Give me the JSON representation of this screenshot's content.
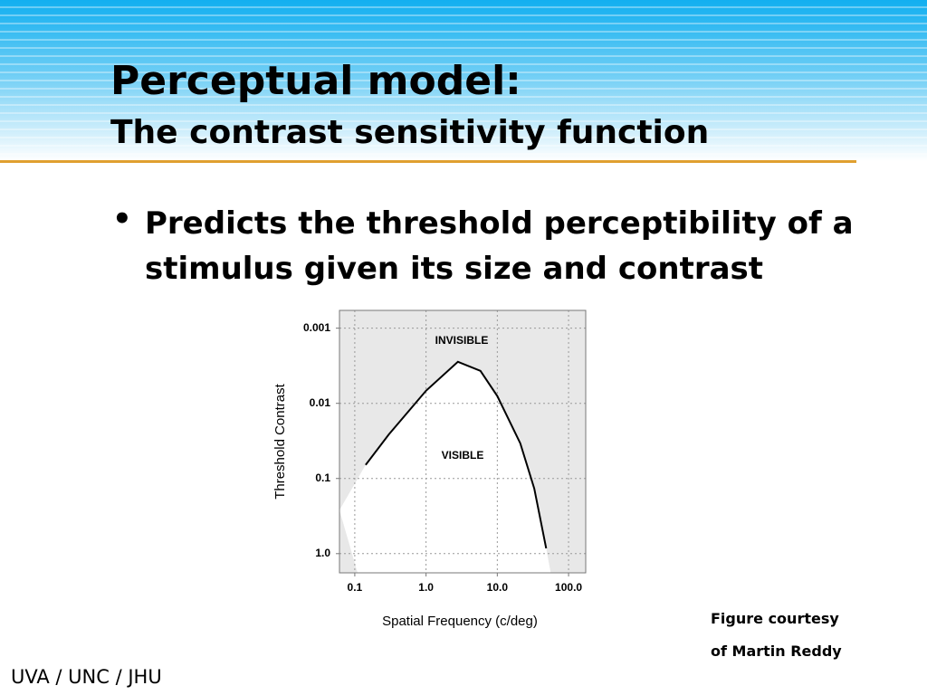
{
  "slide": {
    "title": "Perceptual model:",
    "subtitle": "The contrast sensitivity function",
    "bullet": "Predicts the threshold perceptibility of a stimulus given its size and contrast",
    "credit": [
      "Figure courtesy",
      "of Martin Reddy"
    ],
    "footer": "UVA / UNC / JHU"
  },
  "chart_data": {
    "type": "line",
    "x_label": "Spatial Frequency (c/deg)",
    "y_label": "Threshold Contrast",
    "annotations": [
      "INVISIBLE",
      "VISIBLE"
    ],
    "x": [
      0.142,
      0.3,
      1.0,
      2.8,
      5.8,
      10,
      21,
      33,
      48.5
    ],
    "values": [
      0.066,
      0.026,
      0.0068,
      0.0028,
      0.0037,
      0.008,
      0.034,
      0.136,
      0.85
    ],
    "color": "#000000",
    "xscale": "log",
    "yscale": "log",
    "xlim": [
      0.061,
      174
    ],
    "ylim": [
      1.8,
      0.00058
    ],
    "xticks": [
      0.1,
      {
        "value": 1,
        "label": "1.0"
      },
      {
        "value": 10,
        "label": "10.0"
      },
      {
        "value": 100,
        "label": "100.0"
      }
    ],
    "yticks": [
      0.001,
      0.01,
      0.1,
      {
        "value": 1,
        "label": "1.0"
      }
    ],
    "grid": true
  }
}
